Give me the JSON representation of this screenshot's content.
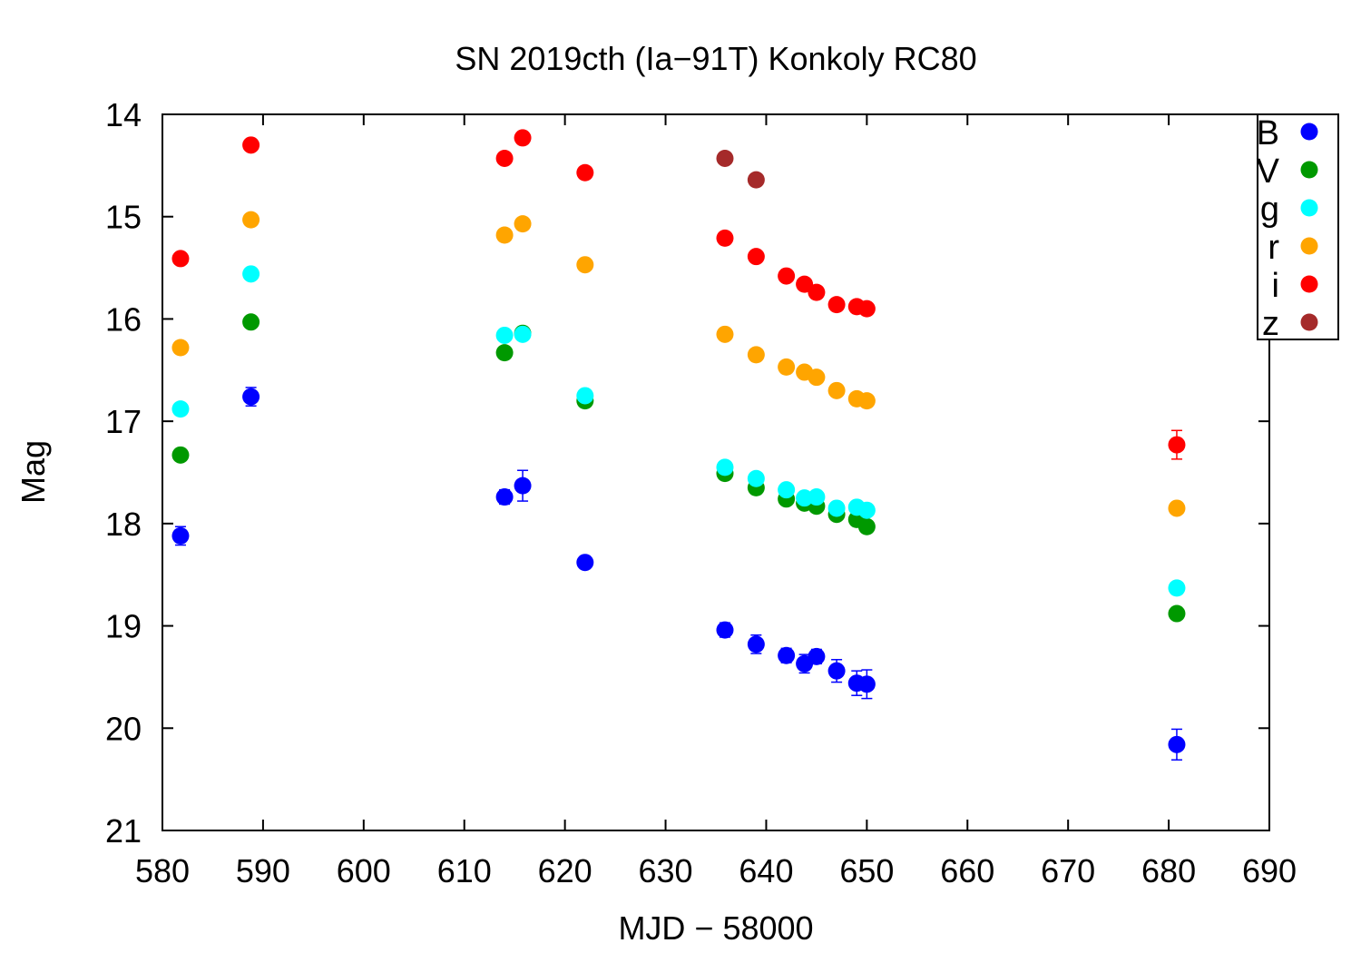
{
  "chart_data": {
    "type": "scatter",
    "title": "SN 2019cth (Ia−91T) Konkoly RC80",
    "xlabel": "MJD − 58000",
    "ylabel": "Mag",
    "xlim": [
      580,
      690
    ],
    "ylim": [
      14,
      21
    ],
    "y_inverted": true,
    "xticks": [
      580,
      590,
      600,
      610,
      620,
      630,
      640,
      650,
      660,
      670,
      680,
      690
    ],
    "yticks": [
      14,
      15,
      16,
      17,
      18,
      19,
      20,
      21
    ],
    "grid": false,
    "legend_position": "top-right",
    "series": [
      {
        "name": "B",
        "color": "#0000ff",
        "points": [
          {
            "x": 581.8,
            "y": 18.12,
            "err": 0.09
          },
          {
            "x": 588.8,
            "y": 16.76,
            "err": 0.09
          },
          {
            "x": 614.0,
            "y": 17.74,
            "err": 0.07
          },
          {
            "x": 615.8,
            "y": 17.63,
            "err": 0.15
          },
          {
            "x": 622.0,
            "y": 18.38,
            "err": 0.06
          },
          {
            "x": 635.9,
            "y": 19.04,
            "err": 0.07
          },
          {
            "x": 639.0,
            "y": 19.18,
            "err": 0.09
          },
          {
            "x": 642.0,
            "y": 19.29,
            "err": 0.07
          },
          {
            "x": 643.8,
            "y": 19.37,
            "err": 0.09
          },
          {
            "x": 645.0,
            "y": 19.3,
            "err": 0.07
          },
          {
            "x": 647.0,
            "y": 19.44,
            "err": 0.11
          },
          {
            "x": 649.0,
            "y": 19.56,
            "err": 0.12
          },
          {
            "x": 650.0,
            "y": 19.57,
            "err": 0.14
          },
          {
            "x": 680.8,
            "y": 20.16,
            "err": 0.15
          }
        ]
      },
      {
        "name": "V",
        "color": "#009900",
        "points": [
          {
            "x": 581.8,
            "y": 17.33
          },
          {
            "x": 588.8,
            "y": 16.03
          },
          {
            "x": 614.0,
            "y": 16.33
          },
          {
            "x": 615.8,
            "y": 16.14
          },
          {
            "x": 622.0,
            "y": 16.8
          },
          {
            "x": 635.9,
            "y": 17.51
          },
          {
            "x": 639.0,
            "y": 17.65
          },
          {
            "x": 642.0,
            "y": 17.76
          },
          {
            "x": 643.8,
            "y": 17.8
          },
          {
            "x": 645.0,
            "y": 17.83
          },
          {
            "x": 647.0,
            "y": 17.91
          },
          {
            "x": 649.0,
            "y": 17.96
          },
          {
            "x": 650.0,
            "y": 18.03
          },
          {
            "x": 680.8,
            "y": 18.88
          }
        ]
      },
      {
        "name": "g",
        "color": "#00ffff",
        "points": [
          {
            "x": 581.8,
            "y": 16.88
          },
          {
            "x": 588.8,
            "y": 15.56
          },
          {
            "x": 614.0,
            "y": 16.16
          },
          {
            "x": 615.8,
            "y": 16.15
          },
          {
            "x": 622.0,
            "y": 16.75
          },
          {
            "x": 635.9,
            "y": 17.45
          },
          {
            "x": 639.0,
            "y": 17.56
          },
          {
            "x": 642.0,
            "y": 17.67
          },
          {
            "x": 643.8,
            "y": 17.75
          },
          {
            "x": 645.0,
            "y": 17.74
          },
          {
            "x": 647.0,
            "y": 17.85
          },
          {
            "x": 649.0,
            "y": 17.84
          },
          {
            "x": 650.0,
            "y": 17.87
          },
          {
            "x": 680.8,
            "y": 18.63
          }
        ]
      },
      {
        "name": "r",
        "color": "#ffa500",
        "points": [
          {
            "x": 581.8,
            "y": 16.28
          },
          {
            "x": 588.8,
            "y": 15.03
          },
          {
            "x": 614.0,
            "y": 15.18
          },
          {
            "x": 615.8,
            "y": 15.07
          },
          {
            "x": 622.0,
            "y": 15.47
          },
          {
            "x": 635.9,
            "y": 16.15
          },
          {
            "x": 639.0,
            "y": 16.35
          },
          {
            "x": 642.0,
            "y": 16.47
          },
          {
            "x": 643.8,
            "y": 16.52
          },
          {
            "x": 645.0,
            "y": 16.57
          },
          {
            "x": 647.0,
            "y": 16.7
          },
          {
            "x": 649.0,
            "y": 16.78
          },
          {
            "x": 650.0,
            "y": 16.8
          },
          {
            "x": 680.8,
            "y": 17.85
          }
        ]
      },
      {
        "name": "i",
        "color": "#ff0000",
        "points": [
          {
            "x": 581.8,
            "y": 15.41
          },
          {
            "x": 588.8,
            "y": 14.3
          },
          {
            "x": 614.0,
            "y": 14.43
          },
          {
            "x": 615.8,
            "y": 14.23,
            "err": 0.06
          },
          {
            "x": 622.0,
            "y": 14.57
          },
          {
            "x": 635.9,
            "y": 15.21
          },
          {
            "x": 639.0,
            "y": 15.39
          },
          {
            "x": 642.0,
            "y": 15.58
          },
          {
            "x": 643.8,
            "y": 15.66
          },
          {
            "x": 645.0,
            "y": 15.74
          },
          {
            "x": 647.0,
            "y": 15.86
          },
          {
            "x": 649.0,
            "y": 15.88
          },
          {
            "x": 650.0,
            "y": 15.9
          },
          {
            "x": 680.8,
            "y": 17.23,
            "err": 0.14
          }
        ]
      },
      {
        "name": "z",
        "color": "#a52a2a",
        "points": [
          {
            "x": 635.9,
            "y": 14.43
          },
          {
            "x": 639.0,
            "y": 14.64
          }
        ]
      }
    ]
  }
}
